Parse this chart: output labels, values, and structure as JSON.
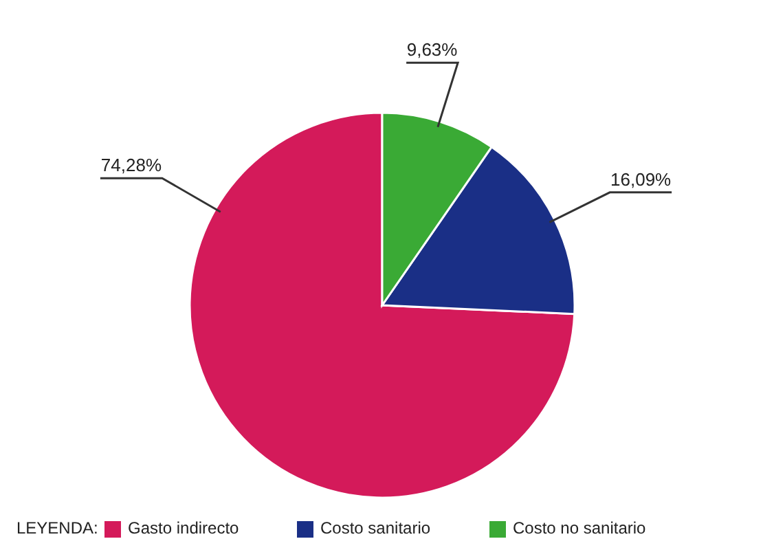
{
  "chart_data": {
    "type": "pie",
    "categories": [
      "Gasto indirecto",
      "Costo sanitario",
      "Costo no sanitario"
    ],
    "values": [
      74.28,
      16.09,
      9.63
    ],
    "value_labels": [
      "74,28%",
      "16,09%",
      "9,63%"
    ],
    "colors": [
      "#d41a5a",
      "#1a2f86",
      "#3aaa35"
    ],
    "legend_title": "LEYENDA:",
    "legend": "bottom"
  }
}
